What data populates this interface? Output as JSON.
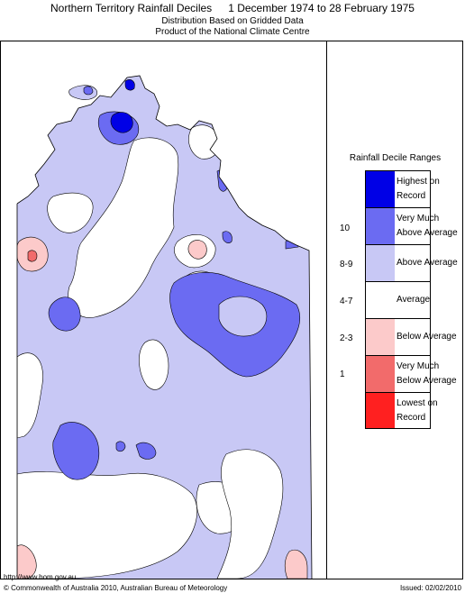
{
  "header": {
    "title": "Northern Territory Rainfall Deciles",
    "period": "1 December 1974 to 28 February 1975",
    "subtitle_line1": "Distribution Based on Gridded Data",
    "subtitle_line2": "Product of the National Climate Centre"
  },
  "legend": {
    "title": "Rainfall Decile Ranges",
    "entries": [
      {
        "range": "",
        "label_line1": "Highest on",
        "label_line2": "Record",
        "color": "#0000e6"
      },
      {
        "range": "10",
        "label_line1": "Very Much",
        "label_line2": "Above Average",
        "color": "#6b6bf2"
      },
      {
        "range": "8-9",
        "label_line1": "Above Average",
        "label_line2": "",
        "color": "#c8c8f5"
      },
      {
        "range": "4-7",
        "label_line1": "Average",
        "label_line2": "",
        "color": "#ffffff"
      },
      {
        "range": "2-3",
        "label_line1": "Below Average",
        "label_line2": "",
        "color": "#fccaca"
      },
      {
        "range": "1",
        "label_line1": "Very Much",
        "label_line2": "Below Average",
        "color": "#f26b6b"
      },
      {
        "range": "",
        "label_line1": "Lowest on",
        "label_line2": "Record",
        "color": "#ff2020"
      }
    ]
  },
  "footer": {
    "url": "http://www.bom.gov.au",
    "copyright": "© Commonwealth of Australia 2010, Australian Bureau of Meteorology",
    "issued": "Issued: 02/02/2010"
  }
}
